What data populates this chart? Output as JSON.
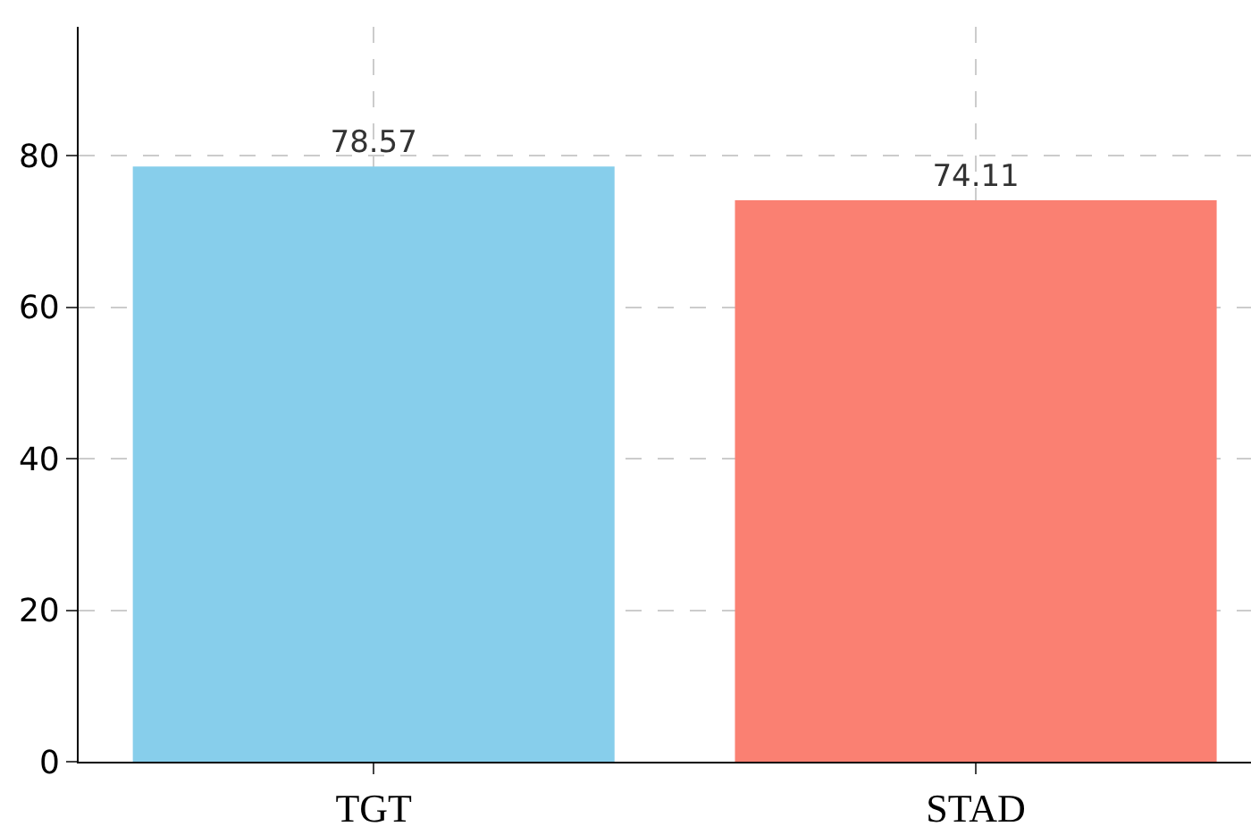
{
  "chart_data": {
    "type": "bar",
    "categories": [
      "TGT",
      "STAD"
    ],
    "values": [
      78.57,
      74.11
    ],
    "colors": [
      "#87ceeb",
      "#fa8072"
    ],
    "ylim": [
      0,
      97
    ],
    "yticks": [
      0,
      20,
      40,
      60,
      80
    ],
    "grid": true,
    "data_labels": true
  }
}
